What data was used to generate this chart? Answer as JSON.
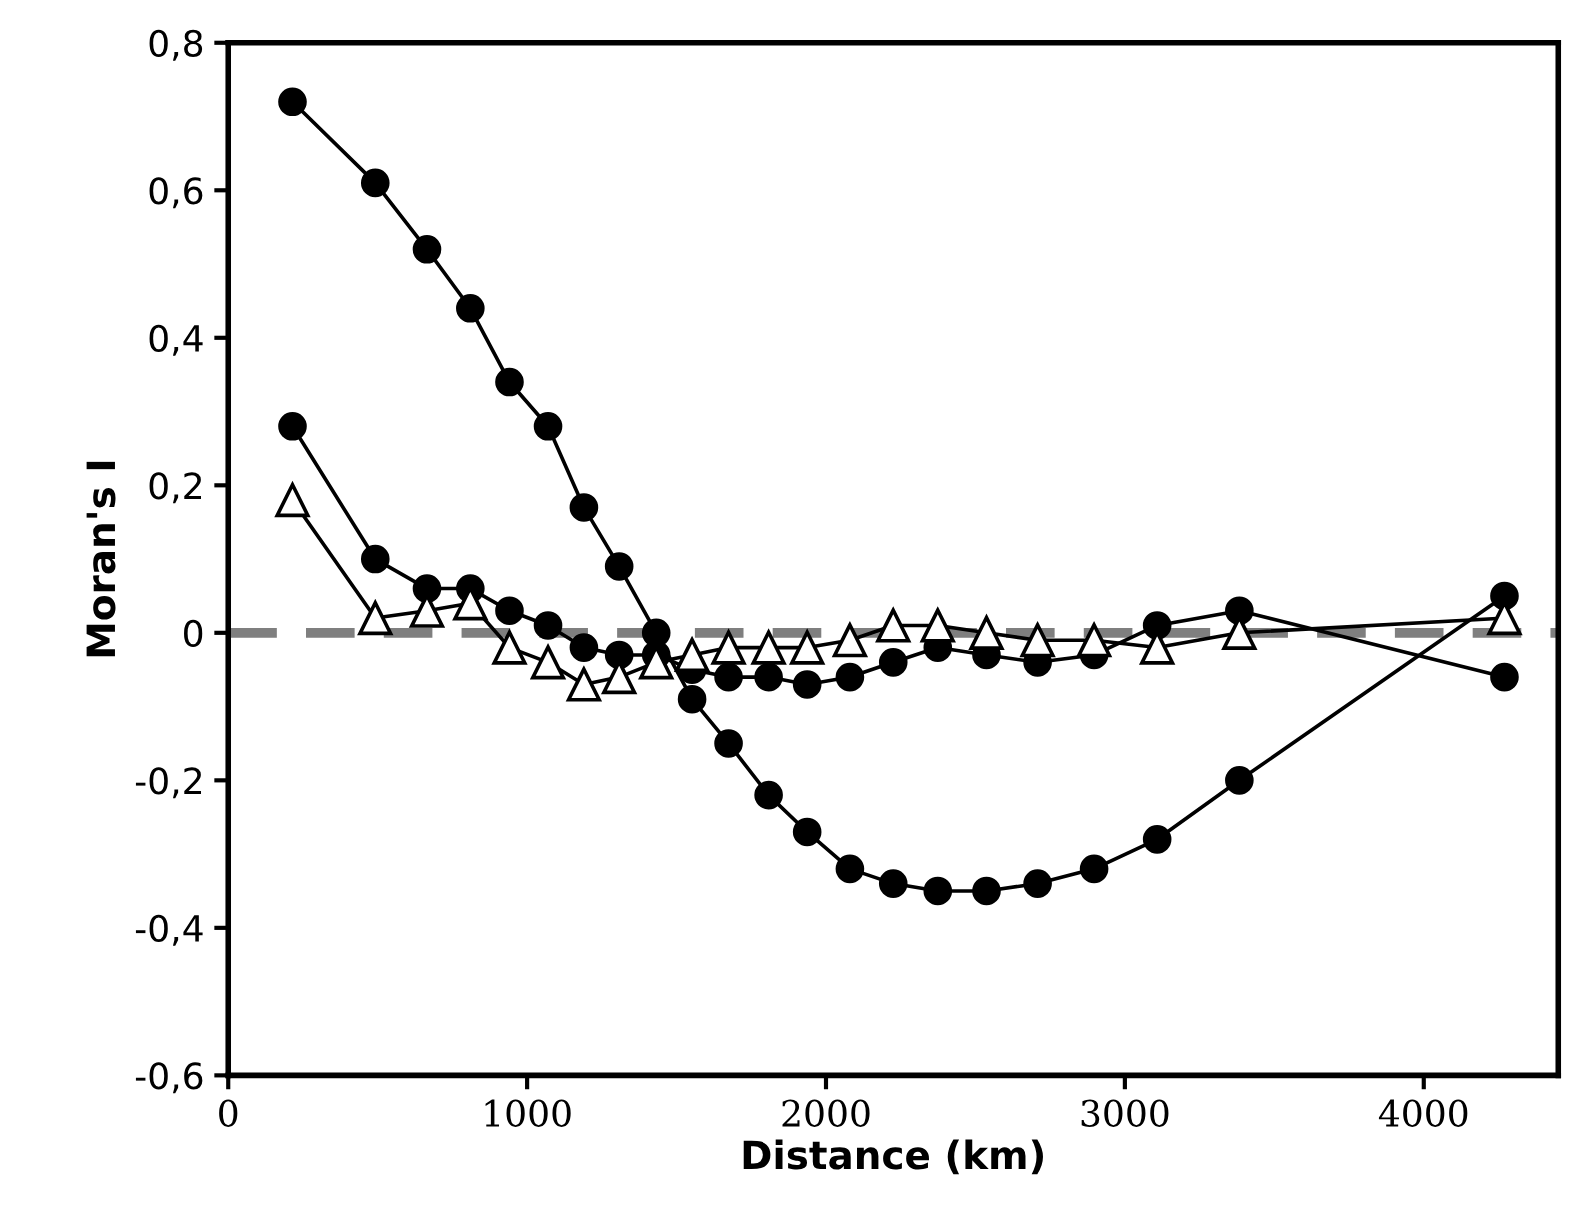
{
  "chart_data": {
    "type": "line",
    "xlabel": "Distance (km)",
    "ylabel": "Moran's I",
    "x": [
      215,
      492,
      665,
      810,
      941,
      1070,
      1190,
      1308,
      1432,
      1552,
      1674,
      1808,
      1937,
      2080,
      2225,
      2374,
      2537,
      2708,
      2897,
      3108,
      3383,
      4270
    ],
    "series": [
      {
        "color": "#000000",
        "marker": "circle",
        "values": [
          0.72,
          0.61,
          0.52,
          0.44,
          0.34,
          0.28,
          0.17,
          0.09,
          0.0,
          -0.09,
          -0.15,
          -0.22,
          -0.27,
          -0.32,
          -0.34,
          -0.35,
          -0.35,
          -0.34,
          -0.32,
          -0.28,
          -0.2,
          0.05
        ]
      },
      {
        "color": "#000000",
        "marker": "circle",
        "values": [
          0.28,
          0.1,
          0.06,
          0.06,
          0.03,
          0.01,
          -0.02,
          -0.03,
          -0.03,
          -0.05,
          -0.06,
          -0.06,
          -0.07,
          -0.06,
          -0.04,
          -0.02,
          -0.03,
          -0.04,
          -0.03,
          0.01,
          0.03,
          -0.06
        ]
      },
      {
        "color": "#000000",
        "marker": "triangle",
        "values": [
          0.18,
          0.02,
          0.03,
          0.04,
          -0.02,
          -0.04,
          -0.07,
          -0.06,
          -0.04,
          -0.03,
          -0.02,
          -0.02,
          -0.02,
          -0.01,
          0.01,
          0.01,
          0.0,
          -0.01,
          -0.01,
          -0.02,
          0.0,
          0.02
        ]
      }
    ],
    "ref_lines": [
      {
        "axis": "y",
        "value": 0,
        "color": "#7f7f7f",
        "line_style": "dashed"
      }
    ],
    "xlim": [
      0,
      4450
    ],
    "xticks": [
      0,
      1000,
      2000,
      3000,
      4000
    ],
    "ylim": [
      -0.6,
      0.8
    ],
    "yticks": [
      {
        "value": -0.6,
        "label": "-0,6"
      },
      {
        "value": -0.4,
        "label": "-0,4"
      },
      {
        "value": -0.2,
        "label": "-0,2"
      },
      {
        "value": 0,
        "label": "0"
      },
      {
        "value": 0.2,
        "label": "0,2"
      },
      {
        "value": 0.4,
        "label": "0,4"
      },
      {
        "value": 0.6,
        "label": "0,6"
      },
      {
        "value": 0.8,
        "label": "0,8"
      }
    ],
    "grid": false,
    "legend": false
  }
}
